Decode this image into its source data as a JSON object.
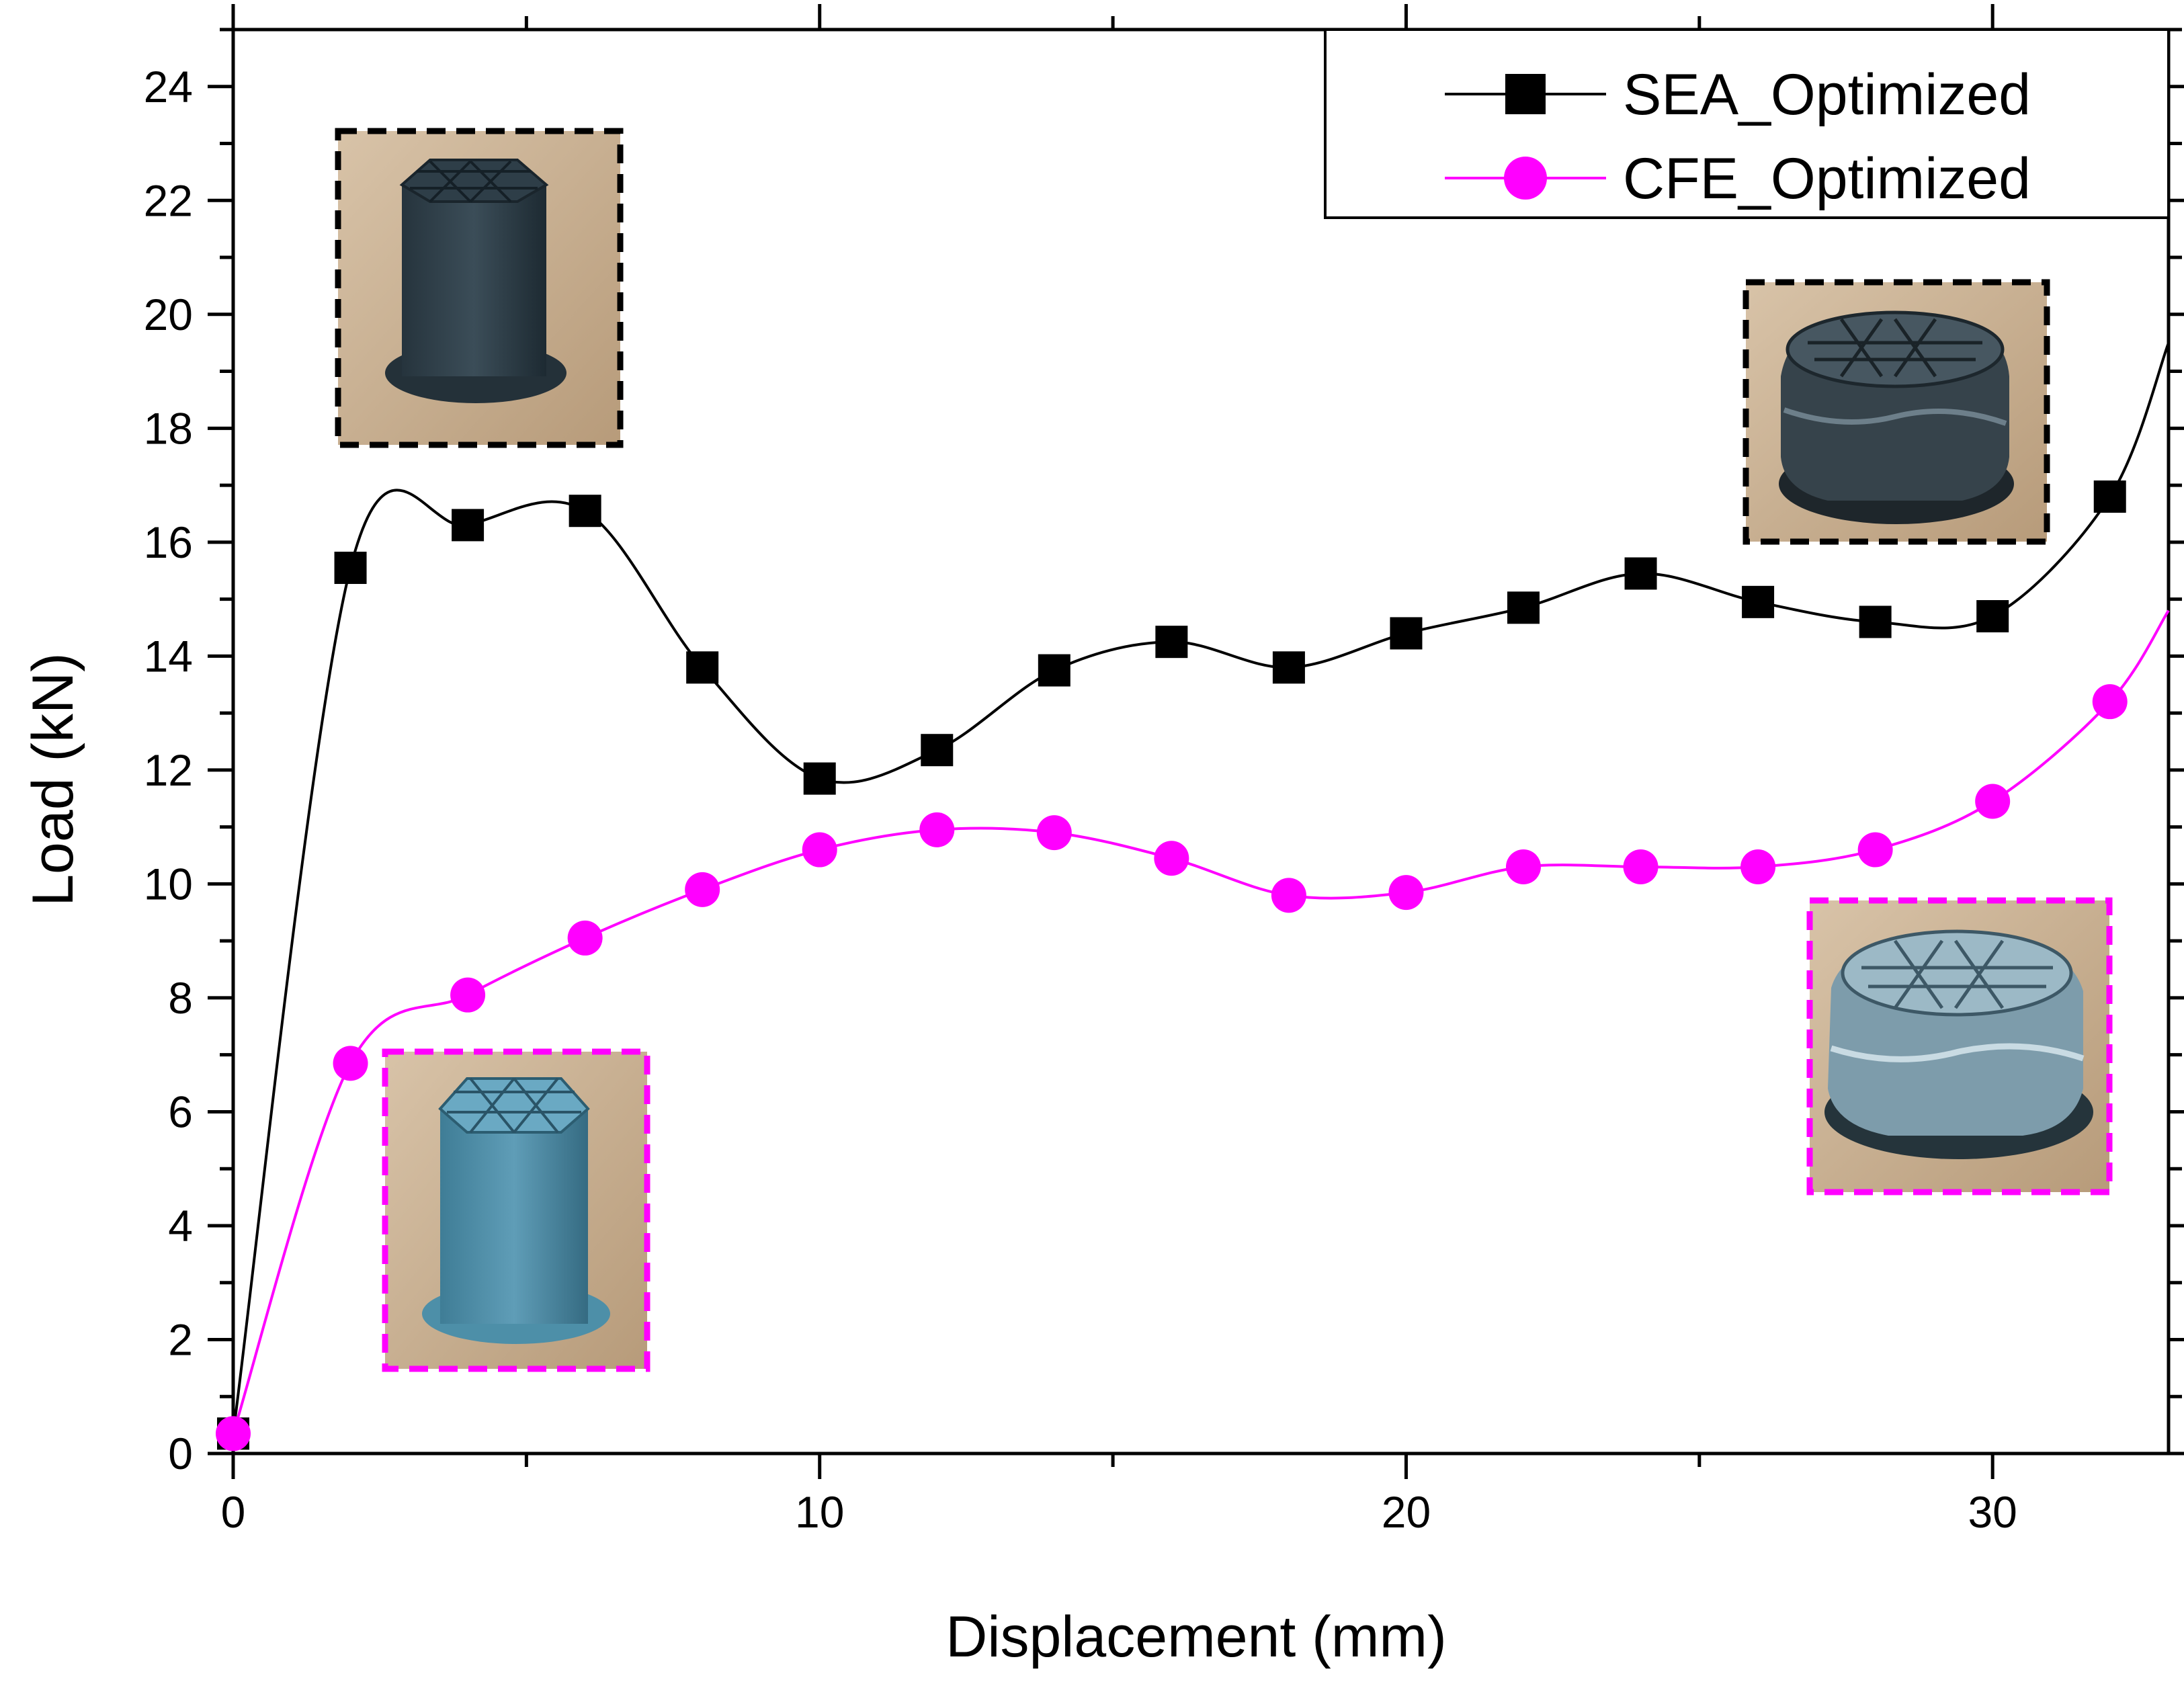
{
  "chart_data": {
    "type": "line",
    "title": "",
    "xlabel": "Displacement (mm)",
    "ylabel": "Load (kN)",
    "xlim": [
      0,
      33
    ],
    "ylim": [
      0,
      25
    ],
    "x_ticks": [
      0,
      10,
      20,
      30
    ],
    "y_ticks": [
      0,
      2,
      4,
      6,
      8,
      10,
      12,
      14,
      16,
      18,
      20,
      22,
      24
    ],
    "grid": false,
    "legend": {
      "position": "top-right"
    },
    "x": [
      0,
      2,
      4,
      6,
      8,
      10,
      12,
      14,
      16,
      18,
      20,
      22,
      24,
      26,
      28,
      30,
      32
    ],
    "series": [
      {
        "name": "SEA_Optimized",
        "color": "#000000",
        "marker": "square",
        "values": [
          0.35,
          15.55,
          16.3,
          16.55,
          13.8,
          11.85,
          12.35,
          13.75,
          14.25,
          13.8,
          14.4,
          14.85,
          15.45,
          14.95,
          14.6,
          14.7,
          16.8
        ],
        "line_end": 19.5
      },
      {
        "name": "CFE_Optimized",
        "color": "#ff00ff",
        "marker": "circle",
        "values": [
          0.35,
          6.85,
          8.05,
          9.05,
          9.9,
          10.6,
          10.95,
          10.9,
          10.45,
          9.8,
          9.85,
          10.3,
          10.3,
          10.3,
          10.6,
          11.45,
          13.2
        ],
        "line_end": 14.8
      }
    ],
    "insets": [
      {
        "name": "inset-sea-initial",
        "frame_color": "#000000",
        "depicts": "uncrushed hexagonal lattice column"
      },
      {
        "name": "inset-sea-crushed",
        "frame_color": "#000000",
        "depicts": "crushed hexagonal lattice column"
      },
      {
        "name": "inset-cfe-initial",
        "frame_color": "#ff00ff",
        "depicts": "uncrushed hexagonal lattice column"
      },
      {
        "name": "inset-cfe-crushed",
        "frame_color": "#ff00ff",
        "depicts": "crushed hexagonal lattice column"
      }
    ]
  }
}
